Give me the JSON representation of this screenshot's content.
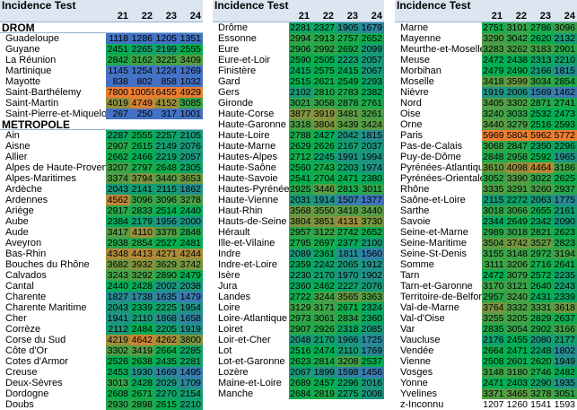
{
  "colors": {
    "low": "#4472c4",
    "mid": "#00b050",
    "high": "#ed7d31"
  },
  "panels": [
    {
      "title": "Incidence Test",
      "columns": [
        "21",
        "22",
        "23",
        "24"
      ],
      "rows": [
        {
          "section": "DROM"
        },
        {
          "name": "Guadeloupe",
          "values": [
            1118,
            1286,
            1205,
            1351
          ]
        },
        {
          "name": "Guyane",
          "values": [
            2451,
            2265,
            2199,
            2555
          ]
        },
        {
          "name": "La Réunion",
          "values": [
            2842,
            3162,
            3225,
            3409
          ]
        },
        {
          "name": "Martinique",
          "values": [
            1145,
            1254,
            1224,
            1269
          ]
        },
        {
          "name": "Mayotte",
          "values": [
            838,
            802,
            858,
            1032
          ]
        },
        {
          "name": "Saint-Barthélemy",
          "values": [
            7800,
            10059,
            6455,
            4929
          ]
        },
        {
          "name": "Saint-Martin",
          "values": [
            4019,
            4749,
            4152,
            3085
          ]
        },
        {
          "name": "Saint-Pierre-et-Miquelon",
          "values": [
            267,
            250,
            317,
            1001
          ]
        },
        {
          "section": "METROPOLE"
        },
        {
          "name": "Ain",
          "values": [
            2287,
            2555,
            2257,
            2105
          ]
        },
        {
          "name": "Aisne",
          "values": [
            2907,
            2615,
            2149,
            2076
          ]
        },
        {
          "name": "Allier",
          "values": [
            2662,
            2466,
            2219,
            2057
          ]
        },
        {
          "name": "Alpes de Haute-Provence",
          "values": [
            3207,
            2797,
            2648,
            2305
          ]
        },
        {
          "name": "Alpes-Maritimes",
          "values": [
            3374,
            3794,
            3440,
            3653
          ]
        },
        {
          "name": "Ardèche",
          "values": [
            2043,
            2141,
            2115,
            1862
          ]
        },
        {
          "name": "Ardennes",
          "values": [
            4562,
            3096,
            3096,
            3278
          ]
        },
        {
          "name": "Ariège",
          "values": [
            2917,
            2833,
            2514,
            2440
          ]
        },
        {
          "name": "Aube",
          "values": [
            2384,
            2179,
            1956,
            2000
          ]
        },
        {
          "name": "Aude",
          "values": [
            3417,
            4110,
            3378,
            2848
          ]
        },
        {
          "name": "Aveyron",
          "values": [
            2938,
            2854,
            2527,
            2481
          ]
        },
        {
          "name": "Bas-Rhin",
          "values": [
            4348,
            4413,
            4271,
            4244
          ]
        },
        {
          "name": "Bouches du Rhône",
          "values": [
            3682,
            3932,
            3629,
            3742
          ]
        },
        {
          "name": "Calvados",
          "values": [
            3243,
            3292,
            2890,
            2479
          ]
        },
        {
          "name": "Cantal",
          "values": [
            2440,
            2428,
            2002,
            2038
          ]
        },
        {
          "name": "Charente",
          "values": [
            1827,
            1738,
            1635,
            1479
          ]
        },
        {
          "name": "Charente Maritime",
          "values": [
            2043,
            2339,
            2225,
            1954
          ]
        },
        {
          "name": "Cher",
          "values": [
            1941,
            2110,
            1868,
            1658
          ]
        },
        {
          "name": "Corrèze",
          "values": [
            2112,
            2484,
            2205,
            1919
          ]
        },
        {
          "name": "Corse du Sud",
          "values": [
            4219,
            4642,
            4262,
            3800
          ]
        },
        {
          "name": "Côte d'Or",
          "values": [
            3302,
            3419,
            2664,
            2285
          ]
        },
        {
          "name": "Cotes d'Armor",
          "values": [
            2526,
            2638,
            2435,
            2281
          ]
        },
        {
          "name": "Creuse",
          "values": [
            2453,
            1930,
            1669,
            1495
          ]
        },
        {
          "name": "Deux-Sèvres",
          "values": [
            3013,
            2428,
            2029,
            1709
          ]
        },
        {
          "name": "Dordogne",
          "values": [
            2608,
            2671,
            2270,
            2154
          ]
        },
        {
          "name": "Doubs",
          "values": [
            2930,
            2898,
            2615,
            2210
          ]
        }
      ]
    },
    {
      "title": "Incidence Test",
      "columns": [
        "21",
        "22",
        "23",
        "24"
      ],
      "rows": [
        {
          "name": "Drôme",
          "values": [
            2281,
            2327,
            1905,
            1679
          ]
        },
        {
          "name": "Essonne",
          "values": [
            2994,
            2913,
            2757,
            2652
          ]
        },
        {
          "name": "Eure",
          "values": [
            2906,
            2992,
            2692,
            2099
          ]
        },
        {
          "name": "Eure-et-Loir",
          "values": [
            2590,
            2505,
            2223,
            2057
          ]
        },
        {
          "name": "Finistère",
          "values": [
            2415,
            2575,
            2415,
            2067
          ]
        },
        {
          "name": "Gard",
          "values": [
            2515,
            2621,
            2549,
            2293
          ]
        },
        {
          "name": "Gers",
          "values": [
            2102,
            2810,
            2783,
            2382
          ]
        },
        {
          "name": "Gironde",
          "values": [
            3021,
            3058,
            2878,
            2761
          ]
        },
        {
          "name": "Haute-Corse",
          "values": [
            3877,
            3919,
            3481,
            3261
          ]
        },
        {
          "name": "Haute-Garonne",
          "values": [
            3318,
            3804,
            3439,
            3424
          ]
        },
        {
          "name": "Haute-Loire",
          "values": [
            2788,
            2427,
            2042,
            1815
          ]
        },
        {
          "name": "Haute-Marne",
          "values": [
            2629,
            2626,
            2167,
            2037
          ]
        },
        {
          "name": "Hautes-Alpes",
          "values": [
            2712,
            2245,
            1991,
            1994
          ]
        },
        {
          "name": "Haute-Saône",
          "values": [
            2560,
            2743,
            2203,
            1974
          ]
        },
        {
          "name": "Haute-Savoie",
          "values": [
            2541,
            2704,
            2471,
            2380
          ]
        },
        {
          "name": "Hautes-Pyrénées",
          "values": [
            2925,
            3446,
            2813,
            3011
          ]
        },
        {
          "name": "Haute-Vienne",
          "values": [
            2031,
            1914,
            1507,
            1377
          ]
        },
        {
          "name": "Haut-Rhin",
          "values": [
            3568,
            3550,
            3418,
            3440
          ]
        },
        {
          "name": "Hauts-de-Seine",
          "values": [
            3804,
            3851,
            4131,
            3730
          ]
        },
        {
          "name": "Hérault",
          "values": [
            2957,
            3122,
            2742,
            2652
          ]
        },
        {
          "name": "Ille-et-Vilaine",
          "values": [
            2795,
            2697,
            2377,
            2100
          ]
        },
        {
          "name": "Indre",
          "values": [
            2089,
            2361,
            1811,
            1560
          ]
        },
        {
          "name": "Indre-et-Loire",
          "values": [
            2359,
            2242,
            2065,
            1912
          ]
        },
        {
          "name": "Isère",
          "values": [
            2230,
            2170,
            1970,
            1902
          ]
        },
        {
          "name": "Jura",
          "values": [
            2360,
            2462,
            2227,
            2076
          ]
        },
        {
          "name": "Landes",
          "values": [
            2722,
            3244,
            3565,
            3363
          ]
        },
        {
          "name": "Loire",
          "values": [
            3129,
            3171,
            2671,
            2324
          ]
        },
        {
          "name": "Loire-Atlantique",
          "values": [
            2973,
            3061,
            2834,
            2360
          ]
        },
        {
          "name": "Loiret",
          "values": [
            2907,
            2926,
            2318,
            2085
          ]
        },
        {
          "name": "Loir-et-Cher",
          "values": [
            2048,
            2170,
            1966,
            1725
          ]
        },
        {
          "name": "Lot",
          "values": [
            2516,
            2474,
            2110,
            1769
          ]
        },
        {
          "name": "Lot-et-Garonne",
          "values": [
            2623,
            2814,
            3208,
            2537
          ]
        },
        {
          "name": "Lozère",
          "values": [
            2067,
            1899,
            1598,
            1456
          ]
        },
        {
          "name": "Maine-et-Loire",
          "values": [
            2689,
            2457,
            2296,
            2016
          ]
        },
        {
          "name": "Manche",
          "values": [
            2684,
            2819,
            2275,
            2008
          ]
        }
      ]
    },
    {
      "title": "Incidence Test",
      "columns": [
        "21",
        "22",
        "23",
        "24"
      ],
      "rows": [
        {
          "name": "Marne",
          "values": [
            2751,
            3101,
            2786,
            3096
          ]
        },
        {
          "name": "Mayenne",
          "values": [
            3290,
            3042,
            2620,
            2132
          ]
        },
        {
          "name": "Meurthe-et-Moselle",
          "values": [
            3283,
            3262,
            3183,
            2901
          ]
        },
        {
          "name": "Meuse",
          "values": [
            2472,
            2438,
            2313,
            2210
          ]
        },
        {
          "name": "Morbihan",
          "values": [
            2479,
            2490,
            2166,
            1815
          ]
        },
        {
          "name": "Moselle",
          "values": [
            3418,
            3599,
            3034,
            2854
          ]
        },
        {
          "name": "Nièvre",
          "values": [
            1919,
            2006,
            1569,
            1462
          ]
        },
        {
          "name": "Nord",
          "values": [
            3405,
            3302,
            2871,
            2741
          ]
        },
        {
          "name": "Oise",
          "values": [
            3240,
            3033,
            2532,
            2473
          ]
        },
        {
          "name": "Orne",
          "values": [
            3440,
            3279,
            2516,
            2593
          ]
        },
        {
          "name": "Paris",
          "values": [
            5969,
            5804,
            5962,
            5772
          ]
        },
        {
          "name": "Pas-de-Calais",
          "values": [
            3068,
            2847,
            2350,
            2296
          ]
        },
        {
          "name": "Puy-de-Dôme",
          "values": [
            2848,
            2958,
            2592,
            1965
          ]
        },
        {
          "name": "Pyrénées-Atlantiques",
          "values": [
            3610,
            4098,
            4464,
            3186
          ]
        },
        {
          "name": "Pyrénées-Orientales",
          "values": [
            3052,
            3390,
            3022,
            2625
          ]
        },
        {
          "name": "Rhône",
          "values": [
            3335,
            3291,
            3260,
            2937
          ]
        },
        {
          "name": "Saône-et-Loire",
          "values": [
            2115,
            2272,
            2063,
            1775
          ]
        },
        {
          "name": "Sarthe",
          "values": [
            3018,
            3066,
            2655,
            2161
          ]
        },
        {
          "name": "Savoie",
          "values": [
            2344,
            2649,
            2342,
            2090
          ]
        },
        {
          "name": "Seine-et-Marne",
          "values": [
            2989,
            3018,
            2821,
            2623
          ]
        },
        {
          "name": "Seine-Maritime",
          "values": [
            3504,
            3742,
            3527,
            2823
          ]
        },
        {
          "name": "Seine-St-Denis",
          "values": [
            3155,
            3148,
            2972,
            3194
          ]
        },
        {
          "name": "Somme",
          "values": [
            3111,
            3206,
            2716,
            2641
          ]
        },
        {
          "name": "Tarn",
          "values": [
            2472,
            3079,
            2572,
            2235
          ]
        },
        {
          "name": "Tarn-et-Garonne",
          "values": [
            3170,
            3121,
            2640,
            2243
          ]
        },
        {
          "name": "Territoire-de-Belfort",
          "values": [
            2957,
            3240,
            2431,
            2339
          ]
        },
        {
          "name": "Val-de-Marne",
          "values": [
            3764,
            3332,
            3331,
            3618
          ]
        },
        {
          "name": "Val-d'Oise",
          "values": [
            3255,
            3205,
            2829,
            2637
          ]
        },
        {
          "name": "Var",
          "values": [
            2835,
            3054,
            2902,
            3166
          ]
        },
        {
          "name": "Vaucluse",
          "values": [
            2176,
            2455,
            2080,
            2177
          ]
        },
        {
          "name": "Vendée",
          "values": [
            2664,
            2471,
            2248,
            1802
          ]
        },
        {
          "name": "Vienne",
          "values": [
            2508,
            2601,
            2620,
            1949
          ]
        },
        {
          "name": "Vosges",
          "values": [
            3148,
            3180,
            2746,
            2482
          ]
        },
        {
          "name": "Yonne",
          "values": [
            2471,
            2403,
            2290,
            1935
          ]
        },
        {
          "name": "Yvelines",
          "values": [
            3371,
            3465,
            3278,
            3051
          ]
        },
        {
          "name": "z-Inconnu",
          "values": [
            1207,
            1260,
            1541,
            1593
          ],
          "uncolored": true
        }
      ]
    }
  ]
}
